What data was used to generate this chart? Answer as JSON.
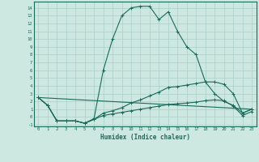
{
  "title": "",
  "xlabel": "Humidex (Indice chaleur)",
  "bg_color": "#cce8e0",
  "line_color": "#1a6b5a",
  "grid_color": "#aacfc8",
  "xlim": [
    -0.5,
    23.5
  ],
  "ylim": [
    -1.2,
    14.8
  ],
  "yticks": [
    -1,
    0,
    1,
    2,
    3,
    4,
    5,
    6,
    7,
    8,
    9,
    10,
    11,
    12,
    13,
    14
  ],
  "xticks": [
    0,
    1,
    2,
    3,
    4,
    5,
    6,
    7,
    8,
    9,
    10,
    11,
    12,
    13,
    14,
    15,
    16,
    17,
    18,
    19,
    20,
    21,
    22,
    23
  ],
  "lines": [
    {
      "x": [
        0,
        1,
        2,
        3,
        4,
        5,
        6,
        7,
        8,
        9,
        10,
        11,
        12,
        13,
        14,
        15,
        16,
        17,
        18,
        19,
        20,
        21,
        22,
        23
      ],
      "y": [
        2.5,
        1.5,
        -0.5,
        -0.5,
        -0.5,
        -0.8,
        -0.2,
        6,
        10,
        13,
        14,
        14.2,
        14.2,
        12.5,
        13.5,
        11,
        9,
        8,
        4.5,
        3,
        2,
        1.5,
        0.5,
        1
      ]
    },
    {
      "x": [
        0,
        1,
        2,
        3,
        4,
        5,
        6,
        7,
        8,
        9,
        10,
        11,
        12,
        13,
        14,
        15,
        16,
        17,
        18,
        19,
        20,
        21,
        22,
        23
      ],
      "y": [
        2.5,
        1.5,
        -0.5,
        -0.5,
        -0.5,
        -0.8,
        -0.3,
        0.5,
        0.8,
        1.2,
        1.8,
        2.2,
        2.7,
        3.2,
        3.8,
        3.9,
        4.1,
        4.3,
        4.5,
        4.5,
        4.2,
        3,
        0.5,
        1
      ]
    },
    {
      "x": [
        0,
        1,
        2,
        3,
        4,
        5,
        6,
        7,
        8,
        9,
        10,
        11,
        12,
        13,
        14,
        15,
        16,
        17,
        18,
        19,
        20,
        21,
        22,
        23
      ],
      "y": [
        2.5,
        1.5,
        -0.5,
        -0.5,
        -0.5,
        -0.8,
        -0.3,
        0.2,
        0.4,
        0.6,
        0.8,
        1.0,
        1.2,
        1.4,
        1.6,
        1.7,
        1.8,
        1.9,
        2.1,
        2.2,
        2.1,
        1.4,
        0.2,
        0.7
      ]
    },
    {
      "x": [
        0,
        23
      ],
      "y": [
        2.5,
        1
      ]
    }
  ]
}
